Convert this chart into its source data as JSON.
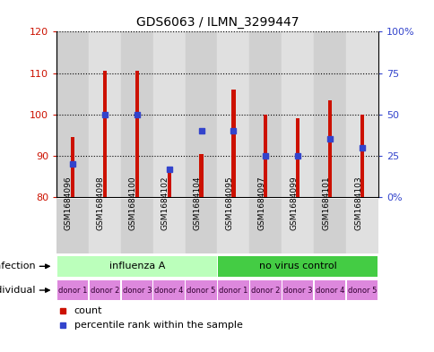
{
  "title": "GDS6063 / ILMN_3299447",
  "samples": [
    "GSM1684096",
    "GSM1684098",
    "GSM1684100",
    "GSM1684102",
    "GSM1684104",
    "GSM1684095",
    "GSM1684097",
    "GSM1684099",
    "GSM1684101",
    "GSM1684103"
  ],
  "counts": [
    94.5,
    110.5,
    110.5,
    87.0,
    90.5,
    106.0,
    100.0,
    99.0,
    103.5,
    100.0
  ],
  "percentile_ranks": [
    20,
    50,
    50,
    17,
    40,
    40,
    25,
    25,
    35,
    30
  ],
  "ylim": [
    80,
    120
  ],
  "y2lim": [
    0,
    100
  ],
  "yticks": [
    80,
    90,
    100,
    110,
    120
  ],
  "y2ticks": [
    0,
    25,
    50,
    75,
    100
  ],
  "y2ticklabels": [
    "0%",
    "25",
    "50",
    "75",
    "100%"
  ],
  "bar_color": "#cc1100",
  "blue_color": "#3344cc",
  "infection_groups": [
    {
      "label": "influenza A",
      "start": 0,
      "end": 5,
      "color": "#bbffbb"
    },
    {
      "label": "no virus control",
      "start": 5,
      "end": 10,
      "color": "#44cc44"
    }
  ],
  "individual_labels": [
    "donor 1",
    "donor 2",
    "donor 3",
    "donor 4",
    "donor 5",
    "donor 1",
    "donor 2",
    "donor 3",
    "donor 4",
    "donor 5"
  ],
  "individual_color": "#dd88dd",
  "row_label_infection": "infection",
  "row_label_individual": "individual",
  "legend_count_label": "count",
  "legend_percentile_label": "percentile rank within the sample",
  "axis_label_color_left": "#cc1100",
  "axis_label_color_right": "#3344cc",
  "col_colors": [
    "#cccccc",
    "#c8c8c8"
  ]
}
